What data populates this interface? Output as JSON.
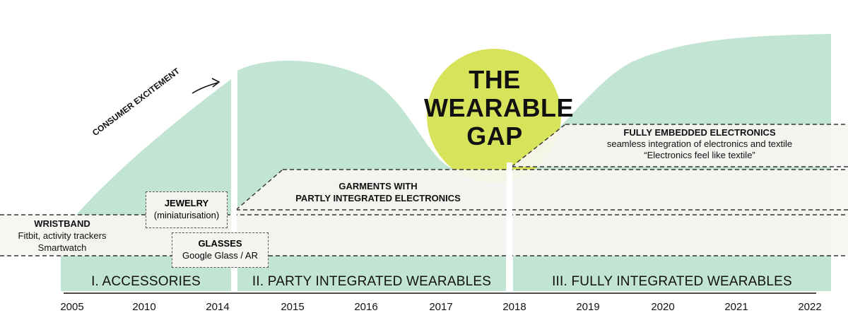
{
  "colors": {
    "curve": "#c2e4d3",
    "gap_circle": "#d7e35a",
    "band": "#f6f5f2",
    "dash": "#333333"
  },
  "gap": {
    "lines": [
      "THE",
      "WEARABLE",
      "GAP"
    ]
  },
  "annotation": {
    "consumer_excitement": "CONSUMER EXCITEMENT"
  },
  "phases": [
    {
      "label": "I. ACCESSORIES"
    },
    {
      "label": "II. PARTY INTEGRATED WEARABLES"
    },
    {
      "label": "III. FULLY INTEGRATED WEARABLES"
    }
  ],
  "bands": {
    "wristband": {
      "title": "WRISTBAND",
      "line1": "Fitbit, activity trackers",
      "line2": "Smartwatch"
    },
    "jewelry": {
      "title": "JEWELRY",
      "sub": "(miniaturisation)"
    },
    "glasses": {
      "title": "GLASSES",
      "sub": "Google Glass / AR"
    },
    "garments": {
      "line1": "GARMENTS WITH",
      "line2": "PARTLY INTEGRATED ELECTRONICS"
    },
    "embedded": {
      "title": "FULLY EMBEDDED ELECTRONICS",
      "line1": "seamless integration of electronics and textile",
      "line2": "“Electronics feel like textile”"
    }
  },
  "axis": {
    "years": [
      "2005",
      "2010",
      "2014",
      "2015",
      "2016",
      "2017",
      "2018",
      "2019",
      "2020",
      "2021",
      "2022"
    ]
  }
}
